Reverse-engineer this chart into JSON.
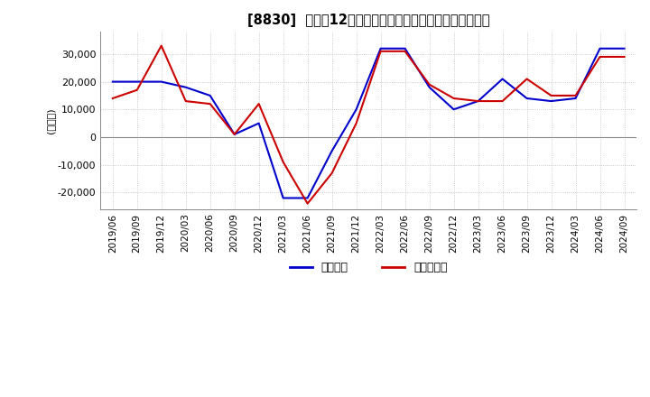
{
  "title": "[8830]  利益の12か月移動合計の対前年同期増減額の推移",
  "ylabel": "(百万円)",
  "ylim": [
    -26000,
    38000
  ],
  "yticks": [
    -20000,
    -10000,
    0,
    10000,
    20000,
    30000
  ],
  "background_color": "#ffffff",
  "grid_color": "#bbbbbb",
  "legend_labels": [
    "経常利益",
    "当期純利益"
  ],
  "line1_color": "#0000cc",
  "line2_color": "#cc0000",
  "x_labels": [
    "2019/06",
    "2019/09",
    "2019/12",
    "2020/03",
    "2020/06",
    "2020/09",
    "2020/12",
    "2021/03",
    "2021/06",
    "2021/09",
    "2021/12",
    "2022/03",
    "2022/06",
    "2022/09",
    "2022/12",
    "2023/03",
    "2023/06",
    "2023/09",
    "2023/12",
    "2024/03",
    "2024/06",
    "2024/09"
  ],
  "line1_values": [
    20000,
    20000,
    20000,
    18000,
    15000,
    1000,
    5000,
    -22000,
    -22000,
    -5000,
    10000,
    32000,
    32000,
    18000,
    10000,
    13000,
    21000,
    14000,
    13000,
    14000,
    32000,
    32000
  ],
  "line2_values": [
    14000,
    17000,
    33000,
    13000,
    12000,
    1000,
    12000,
    -9000,
    -24000,
    -13000,
    5000,
    31000,
    31000,
    19000,
    14000,
    13000,
    13000,
    21000,
    15000,
    15000,
    29000,
    29000
  ]
}
